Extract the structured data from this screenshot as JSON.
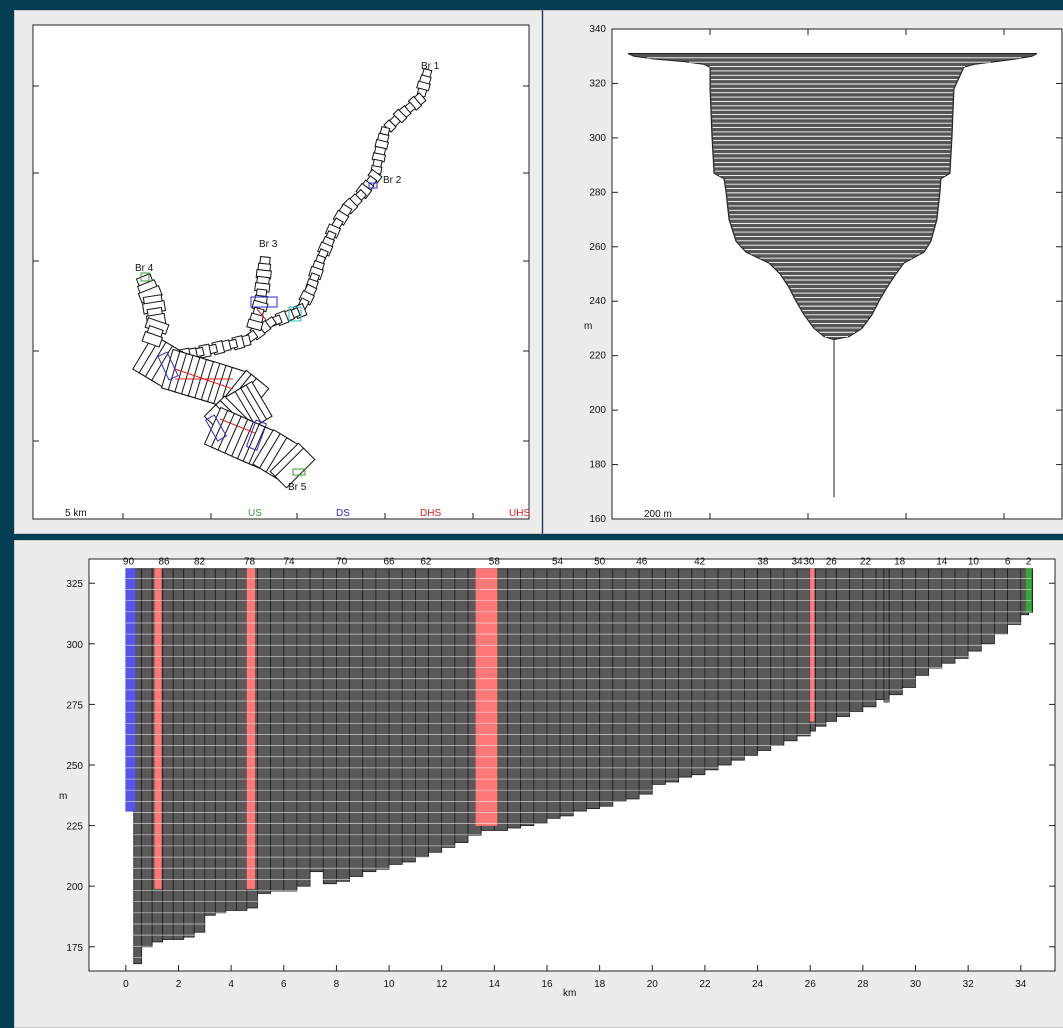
{
  "map": {
    "scale_label": "5 km",
    "legend": [
      {
        "label": "US",
        "color": "#3a9a3a"
      },
      {
        "label": "DS",
        "color": "#2a2ad0"
      },
      {
        "label": "DHS",
        "color": "#e02020"
      },
      {
        "label": "UHS",
        "color": "#e02020"
      }
    ],
    "branches": [
      "Br 1",
      "Br 2",
      "Br 3",
      "Br 4",
      "Br 5"
    ]
  },
  "section": {
    "scale_label": "200 m",
    "ylabel": "m",
    "yticks": [
      160,
      180,
      200,
      220,
      240,
      260,
      280,
      300,
      320,
      340
    ]
  },
  "chart_data": {
    "type": "bar",
    "ylabel": "m",
    "xlabel": "km",
    "xlim": [
      -1.4,
      35.3
    ],
    "ylim": [
      165,
      335
    ],
    "xticks": [
      0,
      2,
      4,
      6,
      8,
      10,
      12,
      14,
      16,
      18,
      20,
      22,
      24,
      26,
      28,
      30,
      32,
      34
    ],
    "yticks": [
      175,
      200,
      225,
      250,
      275,
      300,
      325
    ],
    "top_elevation": 331,
    "segment_labels": [
      {
        "label": "90",
        "x": 0.1
      },
      {
        "label": "86",
        "x": 1.45
      },
      {
        "label": "82",
        "x": 2.8
      },
      {
        "label": "78",
        "x": 4.7
      },
      {
        "label": "74",
        "x": 6.2
      },
      {
        "label": "70",
        "x": 8.2
      },
      {
        "label": "66",
        "x": 10.0
      },
      {
        "label": "62",
        "x": 11.4
      },
      {
        "label": "58",
        "x": 14.0
      },
      {
        "label": "54",
        "x": 16.4
      },
      {
        "label": "50",
        "x": 18.0
      },
      {
        "label": "46",
        "x": 19.6
      },
      {
        "label": "42",
        "x": 21.8
      },
      {
        "label": "38",
        "x": 24.2
      },
      {
        "label": "34",
        "x": 25.5
      },
      {
        "label": "30",
        "x": 25.95
      },
      {
        "label": "26",
        "x": 26.8
      },
      {
        "label": "22",
        "x": 28.1
      },
      {
        "label": "18",
        "x": 29.4
      },
      {
        "label": "14",
        "x": 31.0
      },
      {
        "label": "10",
        "x": 32.2
      },
      {
        "label": "6",
        "x": 33.5
      },
      {
        "label": "2",
        "x": 34.3
      }
    ],
    "bed_profile": [
      [
        0.0,
        231
      ],
      [
        0.3,
        168
      ],
      [
        0.6,
        175
      ],
      [
        1.0,
        177
      ],
      [
        1.4,
        178
      ],
      [
        1.8,
        178
      ],
      [
        2.2,
        179
      ],
      [
        2.6,
        181
      ],
      [
        3.0,
        188
      ],
      [
        3.4,
        189
      ],
      [
        3.8,
        190
      ],
      [
        4.2,
        190
      ],
      [
        4.6,
        191
      ],
      [
        5.0,
        197
      ],
      [
        5.5,
        198
      ],
      [
        6.0,
        198
      ],
      [
        6.5,
        200
      ],
      [
        7.0,
        206
      ],
      [
        7.5,
        201
      ],
      [
        8.0,
        202
      ],
      [
        8.5,
        204
      ],
      [
        9.0,
        206
      ],
      [
        9.5,
        207
      ],
      [
        10.0,
        209
      ],
      [
        10.5,
        210
      ],
      [
        11.0,
        212
      ],
      [
        11.5,
        214
      ],
      [
        12.0,
        216
      ],
      [
        12.5,
        218
      ],
      [
        13.0,
        221
      ],
      [
        13.5,
        223
      ],
      [
        14.0,
        223
      ],
      [
        14.5,
        224
      ],
      [
        15.0,
        225
      ],
      [
        15.5,
        226
      ],
      [
        16.0,
        228
      ],
      [
        16.5,
        229
      ],
      [
        17.0,
        231
      ],
      [
        17.5,
        232
      ],
      [
        18.0,
        233
      ],
      [
        18.5,
        235
      ],
      [
        19.0,
        236
      ],
      [
        19.5,
        238
      ],
      [
        20.0,
        242
      ],
      [
        20.5,
        243
      ],
      [
        21.0,
        245
      ],
      [
        21.5,
        246
      ],
      [
        22.0,
        248
      ],
      [
        22.5,
        250
      ],
      [
        23.0,
        252
      ],
      [
        23.5,
        254
      ],
      [
        24.0,
        256
      ],
      [
        24.5,
        258
      ],
      [
        25.0,
        260
      ],
      [
        25.5,
        262
      ],
      [
        26.0,
        264
      ],
      [
        26.2,
        266
      ],
      [
        26.6,
        268
      ],
      [
        27.0,
        270
      ],
      [
        27.5,
        272
      ],
      [
        28.0,
        274
      ],
      [
        28.5,
        277
      ],
      [
        28.8,
        276
      ],
      [
        29.0,
        279
      ],
      [
        29.5,
        282
      ],
      [
        30.0,
        287
      ],
      [
        30.5,
        290
      ],
      [
        31.0,
        292
      ],
      [
        31.5,
        294
      ],
      [
        32.0,
        297
      ],
      [
        32.5,
        300
      ],
      [
        33.0,
        304
      ],
      [
        33.5,
        308
      ],
      [
        34.0,
        312
      ],
      [
        34.3,
        313
      ]
    ],
    "highlights": [
      {
        "x0": 0.0,
        "x1": 0.35,
        "bottom": 231,
        "color": "#5555ee"
      },
      {
        "x0": 1.1,
        "x1": 1.35,
        "bottom": 199,
        "color": "#ff7777"
      },
      {
        "x0": 4.6,
        "x1": 4.9,
        "bottom": 199,
        "color": "#ff7777"
      },
      {
        "x0": 13.3,
        "x1": 14.1,
        "bottom": 225,
        "color": "#ff7777"
      },
      {
        "x0": 26.0,
        "x1": 26.15,
        "bottom": 268,
        "color": "#ff7777"
      },
      {
        "x0": 34.2,
        "x1": 34.4,
        "bottom": 313,
        "color": "#33aa33"
      }
    ]
  }
}
